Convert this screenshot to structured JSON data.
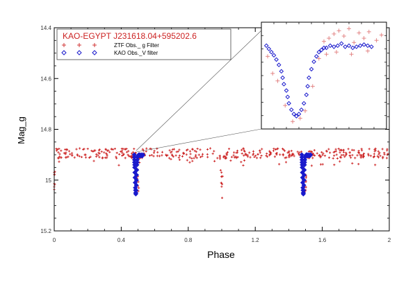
{
  "chart_data": {
    "type": "scatter",
    "title": "KAO-EGYPT J231618.04+595202.6",
    "xlabel": "Phase",
    "ylabel": "Mag_g",
    "xlim": [
      0,
      2
    ],
    "ylim": [
      15.2,
      14.4
    ],
    "y_inverted": true,
    "x_ticks": [
      "0",
      "0.4",
      "0.8",
      "1.2",
      "1.6",
      "2"
    ],
    "x_tick_values": [
      0,
      0.4,
      0.8,
      1.2,
      1.6,
      2
    ],
    "y_ticks": [
      "14.4",
      "14.6",
      "14.8",
      "15",
      "15.2"
    ],
    "y_tick_values": [
      14.4,
      14.6,
      14.8,
      15.0,
      15.2
    ],
    "grid": false,
    "legend_position": "top-left",
    "legend": [
      {
        "label": "ZTF Obs._ g Filter",
        "marker": "plus",
        "color": "#cc2222"
      },
      {
        "label": "KAO Obs._V filter",
        "marker": "diamond",
        "color": "#1a1acc"
      }
    ],
    "series": [
      {
        "name": "ZTF Obs._ g Filter",
        "marker": "plus",
        "color": "#cc2222",
        "baseline_mag": 14.895,
        "scatter_amplitude": 0.02,
        "point_count": 420,
        "x_range": [
          0,
          2
        ],
        "eclipses": [
          {
            "phase": 0.0,
            "depth_mag": 15.07
          },
          {
            "phase": 0.5,
            "depth_mag": 15.05
          },
          {
            "phase": 1.0,
            "depth_mag": 15.07
          },
          {
            "phase": 1.5,
            "depth_mag": 15.05
          }
        ]
      },
      {
        "name": "KAO Obs._V filter",
        "marker": "diamond",
        "color": "#1a1acc",
        "eclipse_segments": [
          {
            "phase_start": 0.47,
            "points": [
              [
                0.478,
                14.9
              ],
              [
                0.478,
                14.91
              ],
              [
                0.479,
                14.92
              ],
              [
                0.479,
                14.93
              ],
              [
                0.48,
                14.94
              ],
              [
                0.48,
                14.95
              ],
              [
                0.481,
                14.97
              ],
              [
                0.482,
                14.99
              ],
              [
                0.483,
                15.01
              ],
              [
                0.484,
                15.03
              ],
              [
                0.485,
                15.04
              ],
              [
                0.486,
                15.05
              ],
              [
                0.487,
                15.055
              ],
              [
                0.488,
                15.05
              ],
              [
                0.489,
                15.04
              ],
              [
                0.49,
                15.02
              ],
              [
                0.491,
                15.0
              ],
              [
                0.492,
                14.98
              ],
              [
                0.493,
                14.96
              ],
              [
                0.494,
                14.94
              ],
              [
                0.495,
                14.93
              ],
              [
                0.496,
                14.92
              ],
              [
                0.498,
                14.91
              ],
              [
                0.5,
                14.905
              ],
              [
                0.505,
                14.9
              ],
              [
                0.51,
                14.9
              ],
              [
                0.515,
                14.905
              ],
              [
                0.52,
                14.9
              ],
              [
                0.525,
                14.905
              ],
              [
                0.53,
                14.9
              ]
            ]
          },
          {
            "phase_start": 1.47,
            "points": [
              [
                1.478,
                14.9
              ],
              [
                1.478,
                14.91
              ],
              [
                1.479,
                14.92
              ],
              [
                1.479,
                14.93
              ],
              [
                1.48,
                14.94
              ],
              [
                1.48,
                14.95
              ],
              [
                1.481,
                14.97
              ],
              [
                1.482,
                14.99
              ],
              [
                1.483,
                15.01
              ],
              [
                1.484,
                15.03
              ],
              [
                1.485,
                15.04
              ],
              [
                1.486,
                15.05
              ],
              [
                1.487,
                15.055
              ],
              [
                1.488,
                15.05
              ],
              [
                1.489,
                15.04
              ],
              [
                1.49,
                15.02
              ],
              [
                1.491,
                15.0
              ],
              [
                1.492,
                14.98
              ],
              [
                1.493,
                14.96
              ],
              [
                1.494,
                14.94
              ],
              [
                1.495,
                14.93
              ],
              [
                1.496,
                14.92
              ],
              [
                1.498,
                14.91
              ],
              [
                1.5,
                14.905
              ],
              [
                1.505,
                14.9
              ],
              [
                1.51,
                14.9
              ],
              [
                1.515,
                14.905
              ],
              [
                1.52,
                14.9
              ],
              [
                1.525,
                14.905
              ],
              [
                1.53,
                14.9
              ]
            ]
          }
        ]
      }
    ],
    "inset": {
      "zoom_center_phase": 0.49,
      "zoom_center_mag": 14.9,
      "kao_points": [
        [
          0.04,
          0.22
        ],
        [
          0.06,
          0.25
        ],
        [
          0.08,
          0.28
        ],
        [
          0.1,
          0.31
        ],
        [
          0.12,
          0.35
        ],
        [
          0.14,
          0.4
        ],
        [
          0.16,
          0.46
        ],
        [
          0.17,
          0.52
        ],
        [
          0.18,
          0.58
        ],
        [
          0.2,
          0.64
        ],
        [
          0.21,
          0.7
        ],
        [
          0.22,
          0.76
        ],
        [
          0.24,
          0.82
        ],
        [
          0.26,
          0.86
        ],
        [
          0.28,
          0.88
        ],
        [
          0.3,
          0.86
        ],
        [
          0.32,
          0.82
        ],
        [
          0.34,
          0.76
        ],
        [
          0.36,
          0.68
        ],
        [
          0.37,
          0.6
        ],
        [
          0.38,
          0.52
        ],
        [
          0.4,
          0.44
        ],
        [
          0.42,
          0.37
        ],
        [
          0.44,
          0.32
        ],
        [
          0.46,
          0.28
        ],
        [
          0.48,
          0.26
        ],
        [
          0.5,
          0.24
        ],
        [
          0.52,
          0.24
        ],
        [
          0.55,
          0.22
        ],
        [
          0.58,
          0.23
        ],
        [
          0.61,
          0.22
        ],
        [
          0.64,
          0.2
        ],
        [
          0.67,
          0.23
        ],
        [
          0.7,
          0.22
        ],
        [
          0.73,
          0.24
        ],
        [
          0.76,
          0.23
        ],
        [
          0.79,
          0.22
        ],
        [
          0.82,
          0.21
        ],
        [
          0.85,
          0.22
        ],
        [
          0.88,
          0.23
        ]
      ],
      "ztf_points": [
        [
          0.05,
          0.32
        ],
        [
          0.09,
          0.48
        ],
        [
          0.13,
          0.55
        ],
        [
          0.19,
          0.78
        ],
        [
          0.25,
          0.93
        ],
        [
          0.31,
          0.9
        ],
        [
          0.35,
          0.83
        ],
        [
          0.41,
          0.6
        ],
        [
          0.46,
          0.34
        ],
        [
          0.5,
          0.18
        ],
        [
          0.54,
          0.15
        ],
        [
          0.58,
          0.11
        ],
        [
          0.62,
          0.08
        ],
        [
          0.66,
          0.13
        ],
        [
          0.7,
          0.06
        ],
        [
          0.74,
          0.19
        ],
        [
          0.78,
          0.1
        ],
        [
          0.82,
          0.15
        ],
        [
          0.86,
          0.09
        ],
        [
          0.92,
          0.17
        ],
        [
          0.96,
          0.12
        ],
        [
          0.6,
          0.28
        ],
        [
          0.72,
          0.3
        ],
        [
          0.52,
          0.3
        ],
        [
          0.85,
          0.27
        ]
      ]
    }
  }
}
